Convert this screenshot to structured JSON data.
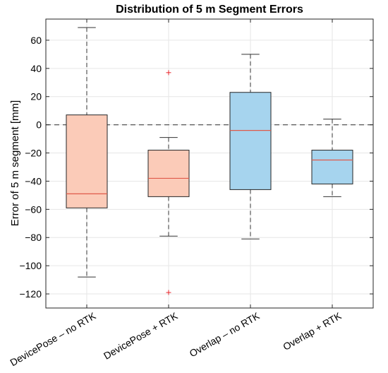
{
  "chart_data": {
    "type": "box",
    "title": "Distribution of 5 m Segment Errors",
    "xlabel": "",
    "ylabel": "Error of 5 m segment [mm]",
    "ylim": [
      -130,
      75
    ],
    "yticks": [
      60,
      40,
      20,
      0,
      -20,
      -40,
      -60,
      -80,
      -100,
      -120
    ],
    "ytick_labels": [
      "60",
      "40",
      "20",
      "0",
      "−20",
      "−40",
      "−60",
      "−80",
      "−100",
      "−120"
    ],
    "grid": true,
    "reference_line": 0,
    "categories": [
      "DevicePose – no RTK",
      "DevicePose + RTK",
      "Overlap – no RTK",
      "Overlap + RTK"
    ],
    "boxes": [
      {
        "whisker_low": -108,
        "q1": -59,
        "median": -49,
        "q3": 7,
        "whisker_high": 69,
        "outliers": [],
        "color": "#fbcbb8"
      },
      {
        "whisker_low": -79,
        "q1": -51,
        "median": -38,
        "q3": -18,
        "whisker_high": -9,
        "outliers": [
          37,
          -119
        ],
        "color": "#fbcbb8"
      },
      {
        "whisker_low": -81,
        "q1": -46,
        "median": -4,
        "q3": 23,
        "whisker_high": 50,
        "outliers": [],
        "color": "#a6d4ee"
      },
      {
        "whisker_low": -51,
        "q1": -42,
        "median": -25,
        "q3": -18,
        "whisker_high": 4,
        "outliers": [],
        "color": "#a6d4ee"
      }
    ],
    "colors": {
      "median": "#e05a4a",
      "outlier": "#e8262b",
      "edge": "#262626",
      "grid": "#e6e6e6"
    }
  }
}
